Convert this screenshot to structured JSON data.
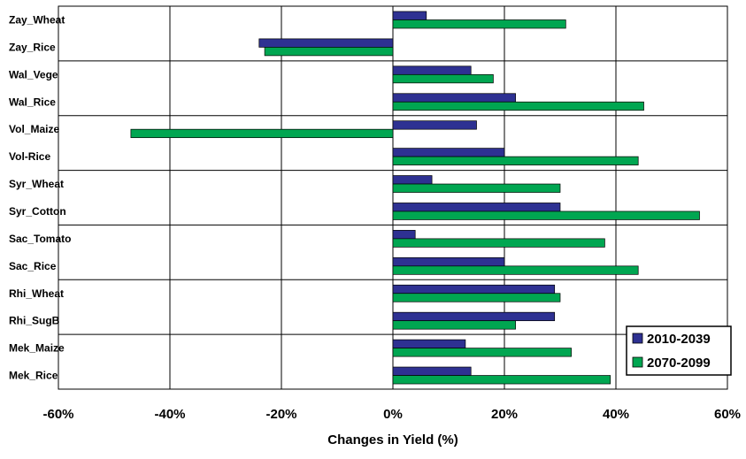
{
  "chart_data": {
    "type": "bar",
    "orientation": "horizontal",
    "categories": [
      "Zay_Wheat",
      "Zay_Rice",
      "Wal_Vege",
      "Wal_Rice",
      "Vol_Maize",
      "Vol-Rice",
      "Syr_Wheat",
      "Syr_Cotton",
      "Sac_Tomato",
      "Sac_Rice",
      "Rhi_Wheat",
      "Rhi_SugB",
      "Mek_Maize",
      "Mek_Rice"
    ],
    "series": [
      {
        "name": "2010-2039",
        "color": "#2e3192",
        "values": [
          6,
          -24,
          14,
          22,
          15,
          20,
          7,
          30,
          4,
          20,
          29,
          29,
          13,
          14
        ]
      },
      {
        "name": "2070-2099",
        "color": "#00a651",
        "values": [
          31,
          -23,
          18,
          45,
          -47,
          44,
          30,
          55,
          38,
          44,
          30,
          22,
          32,
          39
        ]
      }
    ],
    "xlim": [
      -0.6,
      0.6
    ],
    "xticks": [
      -0.6,
      -0.4,
      -0.2,
      0,
      0.2,
      0.4,
      0.6
    ],
    "xtick_labels": [
      "-60%",
      "-40%",
      "-20%",
      "0%",
      "20%",
      "40%",
      "60%"
    ],
    "xlabel": "Changes in Yield (%)",
    "grid": true,
    "legend_position": "bottom-right"
  }
}
